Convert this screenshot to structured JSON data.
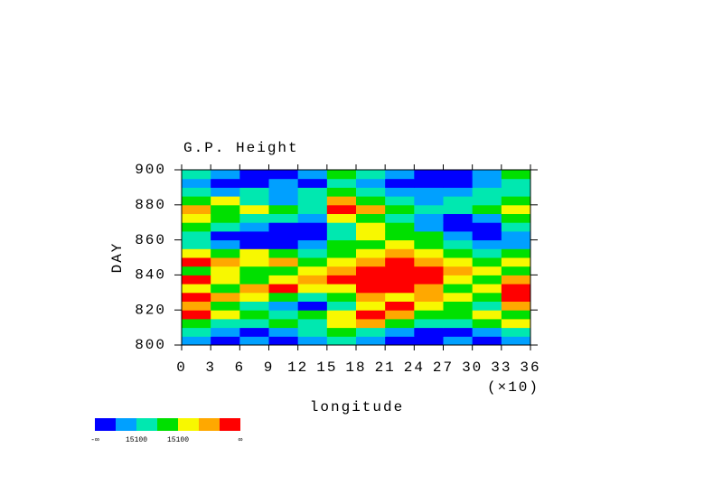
{
  "chart_data": {
    "type": "heatmap",
    "title": "G.P. Height",
    "xlabel": "longitude",
    "ylabel": "DAY",
    "x_multiplier": "(×10)",
    "xlim": [
      0,
      36
    ],
    "ylim": [
      800,
      900
    ],
    "xticks": [
      0,
      3,
      6,
      9,
      12,
      15,
      18,
      21,
      24,
      27,
      30,
      33,
      36
    ],
    "yticks": [
      800,
      820,
      840,
      860,
      880,
      900
    ],
    "xbins": [
      0,
      3,
      6,
      9,
      12,
      15,
      18,
      21,
      24,
      27,
      30,
      33,
      36
    ],
    "ybins": [
      800,
      805,
      810,
      815,
      820,
      825,
      830,
      835,
      840,
      845,
      850,
      855,
      860,
      865,
      870,
      875,
      880,
      885,
      890,
      895,
      900
    ],
    "z": [
      [
        1,
        0,
        1,
        0,
        1,
        2,
        1,
        0,
        0,
        1,
        0,
        1
      ],
      [
        2,
        1,
        0,
        1,
        2,
        3,
        2,
        1,
        0,
        0,
        1,
        2
      ],
      [
        3,
        2,
        2,
        3,
        2,
        4,
        5,
        3,
        2,
        2,
        3,
        4
      ],
      [
        6,
        4,
        3,
        2,
        3,
        4,
        6,
        5,
        3,
        3,
        4,
        3
      ],
      [
        5,
        3,
        2,
        1,
        0,
        2,
        4,
        6,
        4,
        3,
        2,
        5
      ],
      [
        6,
        5,
        4,
        3,
        2,
        3,
        5,
        4,
        5,
        4,
        3,
        6
      ],
      [
        4,
        3,
        5,
        6,
        4,
        4,
        6,
        6,
        5,
        3,
        4,
        6
      ],
      [
        6,
        4,
        3,
        4,
        5,
        6,
        6,
        6,
        6,
        4,
        3,
        5
      ],
      [
        3,
        4,
        3,
        3,
        4,
        5,
        6,
        6,
        6,
        5,
        4,
        3
      ],
      [
        6,
        5,
        4,
        5,
        3,
        4,
        5,
        6,
        5,
        4,
        3,
        4
      ],
      [
        4,
        3,
        4,
        3,
        2,
        3,
        4,
        5,
        4,
        3,
        2,
        3
      ],
      [
        2,
        1,
        0,
        0,
        1,
        3,
        3,
        4,
        3,
        2,
        1,
        1
      ],
      [
        2,
        0,
        0,
        0,
        0,
        2,
        4,
        3,
        3,
        1,
        0,
        1
      ],
      [
        3,
        2,
        1,
        0,
        0,
        2,
        4,
        3,
        1,
        0,
        0,
        2
      ],
      [
        4,
        3,
        2,
        2,
        1,
        4,
        3,
        2,
        1,
        0,
        1,
        3
      ],
      [
        5,
        3,
        4,
        3,
        2,
        6,
        5,
        3,
        2,
        2,
        3,
        4
      ],
      [
        3,
        4,
        2,
        1,
        2,
        5,
        3,
        2,
        1,
        2,
        2,
        3
      ],
      [
        2,
        1,
        2,
        1,
        2,
        3,
        2,
        1,
        1,
        1,
        2,
        2
      ],
      [
        1,
        0,
        0,
        1,
        0,
        2,
        1,
        0,
        0,
        0,
        1,
        2
      ],
      [
        2,
        1,
        0,
        0,
        1,
        3,
        2,
        1,
        0,
        0,
        1,
        3
      ]
    ],
    "colorbar": {
      "colors": [
        "#0000ff",
        "#00a0ff",
        "#00e8b0",
        "#00e000",
        "#f8f800",
        "#ffa800",
        "#ff0000"
      ],
      "labels": [
        "-∞",
        "15100",
        "15100",
        "∞"
      ]
    }
  }
}
